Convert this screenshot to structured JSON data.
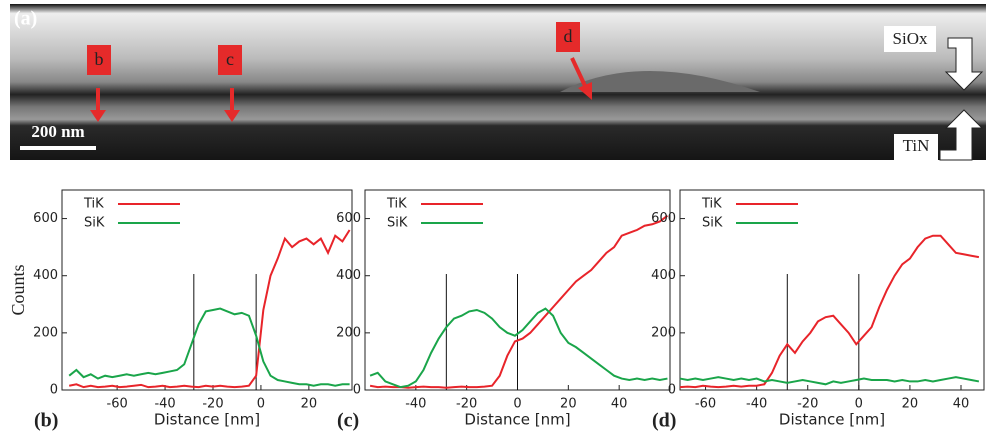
{
  "image": {
    "panel_label": "(a)",
    "markers": [
      "b",
      "c",
      "d"
    ],
    "scale_bar": "200 nm",
    "top_layer": "SiOx",
    "bottom_layer": "TiN"
  },
  "chart_data": [
    {
      "type": "line",
      "panel_label": "(b)",
      "x_label": "Distance [nm]",
      "y_label": "Counts",
      "xlim": [
        -83,
        38
      ],
      "ylim": [
        0,
        700
      ],
      "xticks": [
        -60,
        -40,
        -20,
        0,
        20
      ],
      "yticks": [
        0,
        200,
        400,
        600
      ],
      "vlines": [
        -28,
        -2
      ],
      "x": [
        -80,
        -77,
        -74,
        -71,
        -68,
        -65,
        -62,
        -59,
        -56,
        -53,
        -50,
        -47,
        -44,
        -41,
        -38,
        -35,
        -32,
        -29,
        -26,
        -23,
        -20,
        -17,
        -14,
        -11,
        -8,
        -5,
        -2,
        1,
        4,
        7,
        10,
        13,
        16,
        19,
        22,
        25,
        28,
        31,
        34,
        37
      ],
      "series": [
        {
          "name": "TiK",
          "color": "#e8242a",
          "values": [
            15,
            20,
            10,
            15,
            10,
            12,
            15,
            10,
            12,
            15,
            18,
            10,
            12,
            15,
            10,
            12,
            15,
            12,
            10,
            15,
            12,
            15,
            12,
            10,
            12,
            15,
            50,
            280,
            400,
            460,
            530,
            500,
            520,
            530,
            510,
            530,
            480,
            540,
            520,
            560
          ]
        },
        {
          "name": "SiK",
          "color": "#1aa54a",
          "values": [
            50,
            70,
            45,
            55,
            40,
            50,
            45,
            50,
            55,
            50,
            55,
            60,
            55,
            60,
            65,
            70,
            90,
            160,
            230,
            275,
            280,
            285,
            275,
            265,
            270,
            260,
            190,
            100,
            50,
            35,
            30,
            25,
            20,
            20,
            15,
            20,
            20,
            15,
            20,
            20
          ]
        }
      ]
    },
    {
      "type": "line",
      "panel_label": "(c)",
      "x_label": "Distance [nm]",
      "xlim": [
        -60,
        60
      ],
      "ylim": [
        0,
        700
      ],
      "xticks": [
        -40,
        -20,
        0,
        20,
        40
      ],
      "yticks": [
        0,
        200,
        400,
        600
      ],
      "vlines": [
        -28,
        0
      ],
      "x": [
        -58,
        -55,
        -52,
        -49,
        -46,
        -43,
        -40,
        -37,
        -34,
        -31,
        -28,
        -25,
        -22,
        -19,
        -16,
        -13,
        -10,
        -7,
        -4,
        -1,
        2,
        5,
        8,
        11,
        14,
        17,
        20,
        23,
        26,
        29,
        32,
        35,
        38,
        41,
        44,
        47,
        50,
        53,
        56,
        59
      ],
      "series": [
        {
          "name": "TiK",
          "color": "#e8242a",
          "values": [
            15,
            10,
            12,
            10,
            10,
            8,
            10,
            12,
            10,
            10,
            8,
            10,
            12,
            10,
            10,
            12,
            15,
            50,
            120,
            170,
            180,
            200,
            230,
            260,
            290,
            320,
            350,
            380,
            400,
            420,
            450,
            480,
            500,
            540,
            550,
            560,
            575,
            580,
            590,
            610
          ]
        },
        {
          "name": "SiK",
          "color": "#1aa54a",
          "values": [
            50,
            60,
            30,
            20,
            10,
            15,
            30,
            70,
            130,
            180,
            220,
            250,
            260,
            275,
            280,
            270,
            250,
            220,
            200,
            190,
            210,
            240,
            270,
            285,
            260,
            200,
            165,
            150,
            130,
            110,
            90,
            70,
            50,
            40,
            35,
            40,
            35,
            40,
            35,
            40
          ]
        }
      ]
    },
    {
      "type": "line",
      "panel_label": "(d)",
      "x_label": "Distance [nm]",
      "xlim": [
        -70,
        49
      ],
      "ylim": [
        0,
        700
      ],
      "xticks": [
        -60,
        -40,
        -20,
        0,
        20,
        40
      ],
      "yticks": [
        0,
        200,
        400,
        600
      ],
      "vlines": [
        -28,
        0
      ],
      "x": [
        -70,
        -67,
        -64,
        -61,
        -58,
        -55,
        -52,
        -49,
        -46,
        -43,
        -40,
        -37,
        -34,
        -31,
        -28,
        -25,
        -22,
        -19,
        -16,
        -13,
        -10,
        -7,
        -4,
        -1,
        2,
        5,
        8,
        11,
        14,
        17,
        20,
        23,
        26,
        29,
        32,
        35,
        38,
        41,
        44,
        47
      ],
      "series": [
        {
          "name": "TiK",
          "color": "#e8242a",
          "values": [
            10,
            12,
            10,
            15,
            12,
            10,
            12,
            15,
            12,
            15,
            15,
            20,
            60,
            120,
            160,
            130,
            170,
            200,
            240,
            255,
            260,
            230,
            200,
            160,
            190,
            220,
            290,
            350,
            400,
            440,
            460,
            500,
            530,
            540,
            540,
            510,
            480,
            475,
            470,
            465
          ]
        },
        {
          "name": "SiK",
          "color": "#1aa54a",
          "values": [
            40,
            35,
            40,
            35,
            40,
            45,
            40,
            35,
            40,
            35,
            40,
            30,
            35,
            30,
            25,
            30,
            35,
            30,
            25,
            20,
            30,
            25,
            30,
            35,
            40,
            35,
            35,
            35,
            30,
            35,
            30,
            30,
            35,
            30,
            35,
            40,
            45,
            40,
            35,
            30
          ]
        }
      ]
    }
  ]
}
